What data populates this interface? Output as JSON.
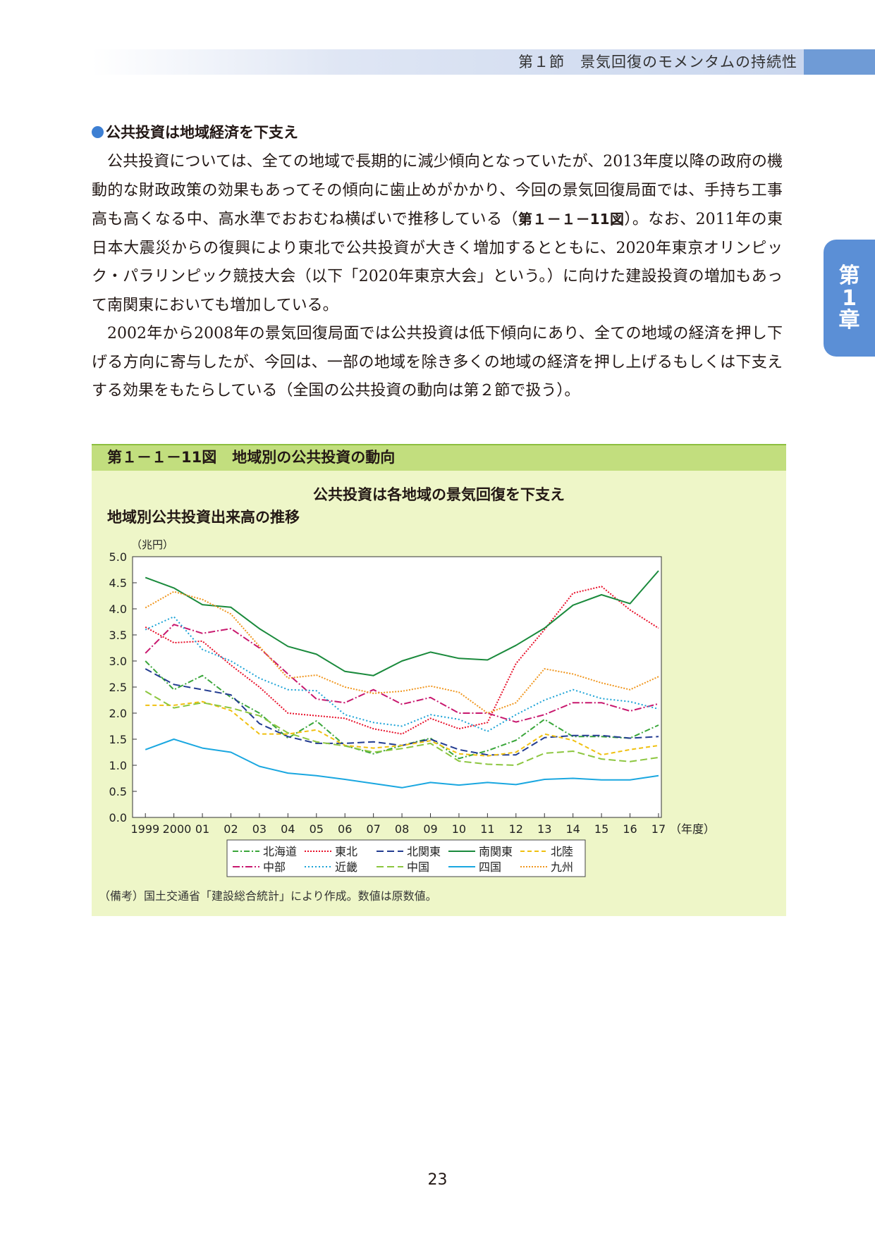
{
  "header": {
    "title": "第１節　景気回復のモメンタムの持続性"
  },
  "chapter_tab": {
    "line1": "第",
    "line2": "1",
    "line3": "章"
  },
  "section": {
    "heading": "公共投資は地域経済を下支え",
    "p1_a": "公共投資については、全ての地域で長期的に減少傾向となっていたが、2013年度以降の政府の機動的な財政政策の効果もあってその傾向に歯止めがかかり、今回の景気回復局面では、手持ち工事高も高くなる中、高水準でおおむね横ばいで推移している（",
    "p1_ref": "第１－１－11図",
    "p1_b": "）。なお、2011年の東日本大震災からの復興により東北で公共投資が大きく増加するとともに、2020年東京オリンピック・パラリンピック競技大会（以下「2020年東京大会」という。）に向けた建設投資の増加もあって南関東においても増加している。",
    "p2": "2002年から2008年の景気回復局面では公共投資は低下傾向にあり、全ての地域の経済を押し下げる方向に寄与したが、今回は、一部の地域を除き多くの地域の経済を押し上げるもしくは下支えする効果をもたらしている（全国の公共投資の動向は第２節で扱う）。"
  },
  "figure": {
    "number": "第１－１－11図",
    "title": "地域別の公共投資の動向",
    "subtitle": "公共投資は各地域の景気回復を下支え",
    "heading": "地域別公共投資出来高の推移",
    "note": "（備考）国土交通省「建設総合統計」により作成。数値は原数値。"
  },
  "chart_data": {
    "type": "line",
    "ylabel": "（兆円）",
    "xlabel": "（年度）",
    "ylim": [
      0,
      5
    ],
    "yticks": [
      "0.0",
      "0.5",
      "1.0",
      "1.5",
      "2.0",
      "2.5",
      "3.0",
      "3.5",
      "4.0",
      "4.5",
      "5.0"
    ],
    "categories": [
      "1999",
      "2000",
      "01",
      "02",
      "03",
      "04",
      "05",
      "06",
      "07",
      "08",
      "09",
      "10",
      "11",
      "12",
      "13",
      "14",
      "15",
      "16",
      "17"
    ],
    "series": [
      {
        "name": "北海道",
        "color": "#3aa63a",
        "dash": "8,3,2,3",
        "values": [
          3.0,
          2.45,
          2.72,
          2.3,
          2.0,
          1.52,
          1.85,
          1.38,
          1.22,
          1.38,
          1.52,
          1.13,
          1.28,
          1.48,
          1.88,
          1.55,
          1.55,
          1.52,
          1.77
        ]
      },
      {
        "name": "東北",
        "color": "#e8102a",
        "dash": "2,2",
        "values": [
          3.65,
          3.35,
          3.38,
          2.92,
          2.5,
          2.0,
          1.95,
          1.9,
          1.7,
          1.6,
          1.9,
          1.7,
          1.82,
          2.95,
          3.6,
          4.3,
          4.43,
          3.98,
          3.63
        ]
      },
      {
        "name": "北関東",
        "color": "#233c91",
        "dash": "10,5",
        "values": [
          2.85,
          2.55,
          2.45,
          2.35,
          1.8,
          1.55,
          1.42,
          1.42,
          1.45,
          1.38,
          1.5,
          1.3,
          1.2,
          1.2,
          1.53,
          1.57,
          1.57,
          1.52,
          1.55
        ]
      },
      {
        "name": "南関東",
        "color": "#1a8a3c",
        "dash": "",
        "values": [
          4.6,
          4.4,
          4.08,
          4.03,
          3.62,
          3.28,
          3.13,
          2.8,
          2.72,
          3.0,
          3.17,
          3.05,
          3.02,
          3.3,
          3.63,
          4.07,
          4.27,
          4.1,
          4.73
        ]
      },
      {
        "name": "北陸",
        "color": "#f0c010",
        "dash": "6,4",
        "values": [
          2.15,
          2.15,
          2.22,
          2.05,
          1.6,
          1.6,
          1.68,
          1.38,
          1.33,
          1.38,
          1.47,
          1.22,
          1.18,
          1.25,
          1.6,
          1.48,
          1.2,
          1.3,
          1.38
        ]
      },
      {
        "name": "中部",
        "color": "#c8186e",
        "dash": "10,3,2,3",
        "values": [
          3.15,
          3.7,
          3.53,
          3.62,
          3.25,
          2.75,
          2.27,
          2.2,
          2.45,
          2.17,
          2.3,
          2.0,
          2.0,
          1.83,
          1.97,
          2.2,
          2.2,
          2.04,
          2.18
        ]
      },
      {
        "name": "近畿",
        "color": "#1aa2d6",
        "dash": "2,3",
        "values": [
          3.6,
          3.85,
          3.22,
          3.0,
          2.67,
          2.45,
          2.43,
          1.97,
          1.82,
          1.75,
          1.97,
          1.88,
          1.65,
          1.97,
          2.25,
          2.45,
          2.28,
          2.22,
          2.08
        ]
      },
      {
        "name": "中国",
        "color": "#8cc63f",
        "dash": "10,5",
        "values": [
          2.42,
          2.1,
          2.2,
          2.1,
          1.95,
          1.62,
          1.45,
          1.37,
          1.25,
          1.32,
          1.42,
          1.08,
          1.02,
          1.0,
          1.23,
          1.27,
          1.12,
          1.07,
          1.15
        ]
      },
      {
        "name": "四国",
        "color": "#1aa7e0",
        "dash": "",
        "values": [
          1.3,
          1.5,
          1.33,
          1.25,
          0.98,
          0.85,
          0.8,
          0.73,
          0.65,
          0.57,
          0.67,
          0.62,
          0.67,
          0.63,
          0.73,
          0.75,
          0.72,
          0.72,
          0.8
        ]
      },
      {
        "name": "九州",
        "color": "#f0961e",
        "dash": "2,2",
        "values": [
          4.02,
          4.33,
          4.18,
          3.9,
          3.28,
          2.67,
          2.73,
          2.5,
          2.38,
          2.42,
          2.52,
          2.4,
          2.0,
          2.2,
          2.85,
          2.75,
          2.58,
          2.45,
          2.7
        ]
      }
    ]
  },
  "page": {
    "number": "23"
  }
}
